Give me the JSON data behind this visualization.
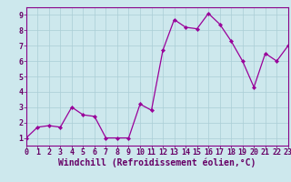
{
  "x": [
    0,
    1,
    2,
    3,
    4,
    5,
    6,
    7,
    8,
    9,
    10,
    11,
    12,
    13,
    14,
    15,
    16,
    17,
    18,
    19,
    20,
    21,
    22,
    23
  ],
  "y": [
    1.0,
    1.7,
    1.8,
    1.7,
    3.0,
    2.5,
    2.4,
    1.0,
    1.0,
    1.0,
    3.2,
    2.8,
    6.7,
    8.7,
    8.2,
    8.1,
    9.1,
    8.4,
    7.3,
    6.0,
    4.3,
    6.5,
    6.0,
    7.0
  ],
  "line_color": "#990099",
  "marker": "D",
  "markersize": 2.2,
  "linewidth": 0.9,
  "xlabel": "Windchill (Refroidissement éolien,°C)",
  "xlim": [
    0,
    23
  ],
  "ylim": [
    0.5,
    9.5
  ],
  "xticks": [
    0,
    1,
    2,
    3,
    4,
    5,
    6,
    7,
    8,
    9,
    10,
    11,
    12,
    13,
    14,
    15,
    16,
    17,
    18,
    19,
    20,
    21,
    22,
    23
  ],
  "yticks": [
    1,
    2,
    3,
    4,
    5,
    6,
    7,
    8,
    9
  ],
  "bg_color": "#cde8ed",
  "grid_color": "#aacdd5",
  "line_border_color": "#660066",
  "label_color": "#660066",
  "xlabel_fontsize": 7.0,
  "tick_fontsize": 6.0,
  "spine_color": "#880088"
}
